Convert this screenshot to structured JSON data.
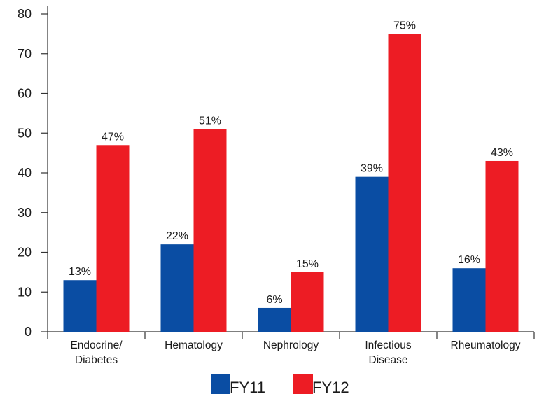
{
  "chart_data": {
    "type": "bar",
    "title": "",
    "xlabel": "",
    "ylabel": "",
    "categories": [
      [
        "Endocrine/",
        "Diabetes"
      ],
      [
        "Hematology"
      ],
      [
        "Nephrology"
      ],
      [
        "Infectious",
        "Disease"
      ],
      [
        "Rheumatology"
      ]
    ],
    "series": [
      {
        "name": "FY11",
        "color": "#0A4DA3",
        "values": [
          13,
          22,
          6,
          39,
          16
        ],
        "labels": [
          "13%",
          "22%",
          "6%",
          "39%",
          "16%"
        ]
      },
      {
        "name": "FY12",
        "color": "#ED1C24",
        "values": [
          47,
          51,
          15,
          75,
          43
        ],
        "labels": [
          "47%",
          "51%",
          "15%",
          "75%",
          "43%"
        ]
      }
    ],
    "ylim": [
      0,
      80
    ],
    "yticks": [
      "0",
      "10",
      "20",
      "30",
      "40",
      "50",
      "60",
      "70",
      "80"
    ],
    "grid": false,
    "legend_position": "bottom-center"
  }
}
